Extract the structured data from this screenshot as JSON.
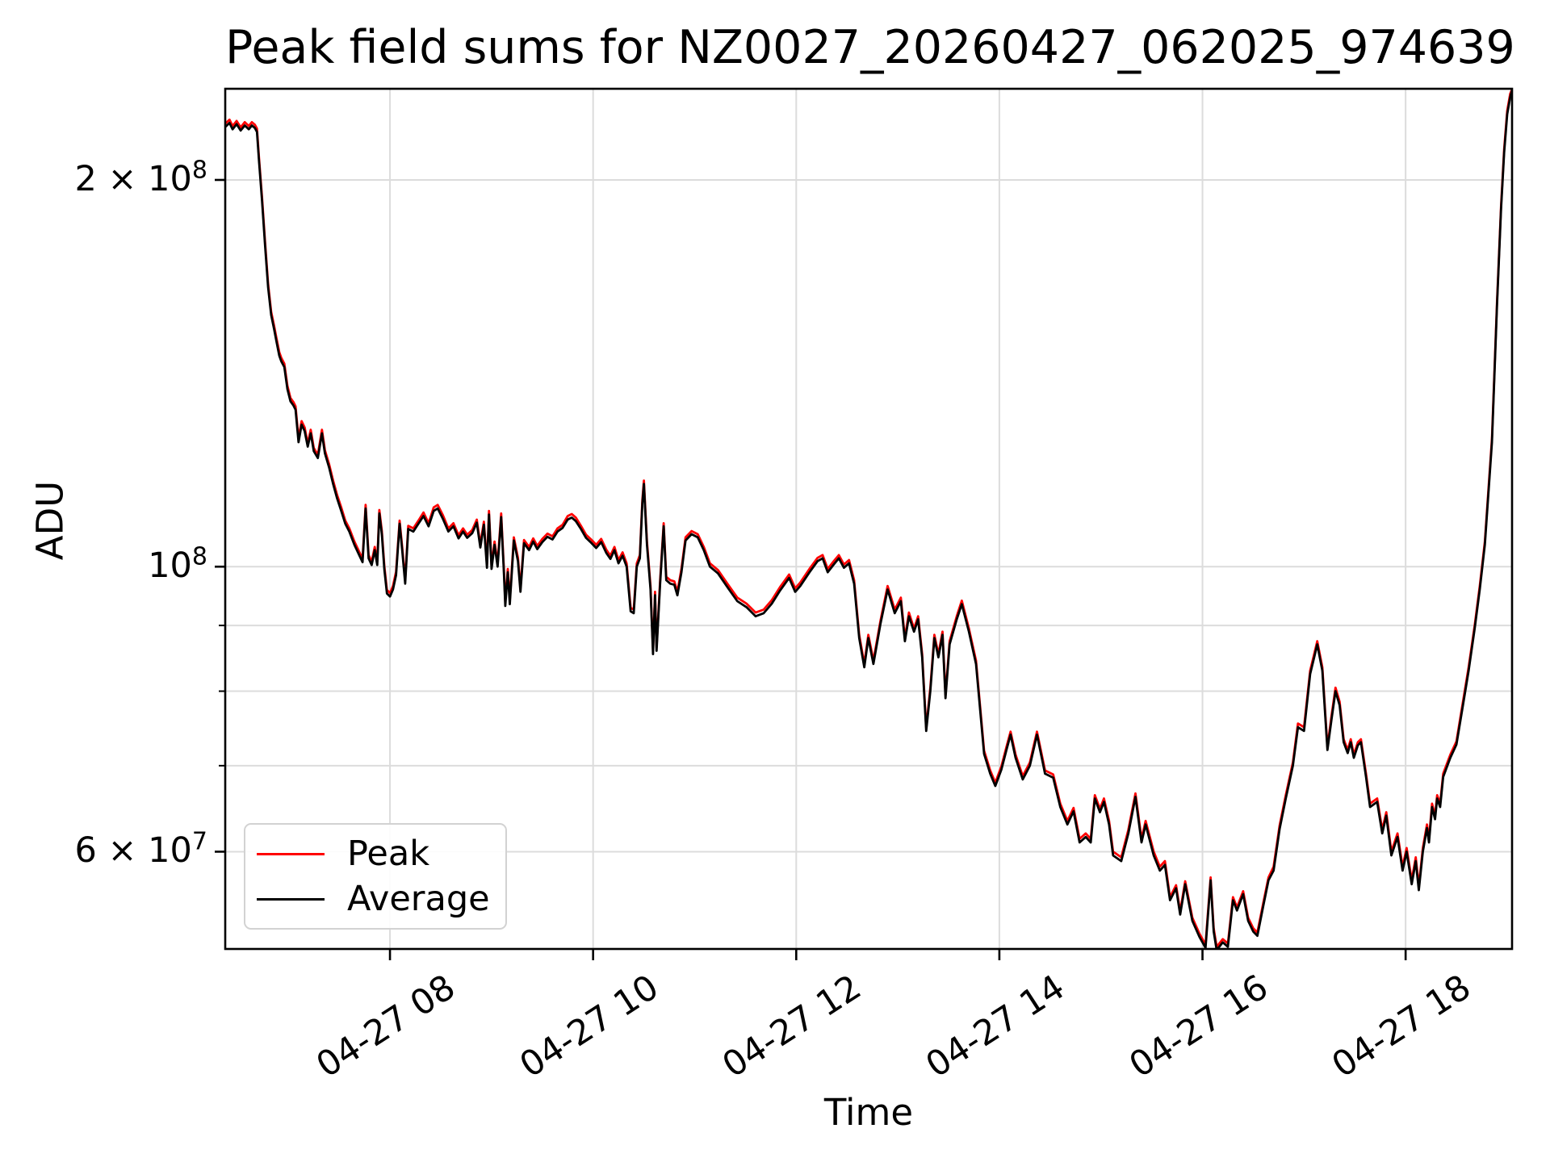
{
  "title": "Peak field sums for NZ0027_20260427_062025_974639",
  "axes": {
    "xlabel": "Time",
    "ylabel": "ADU",
    "x_ticks": [
      {
        "hour": 8,
        "label": "04-27 08"
      },
      {
        "hour": 10,
        "label": "04-27 10"
      },
      {
        "hour": 12,
        "label": "04-27 12"
      },
      {
        "hour": 14,
        "label": "04-27 14"
      },
      {
        "hour": 16,
        "label": "04-27 16"
      },
      {
        "hour": 18,
        "label": "04-27 18"
      }
    ],
    "y_major_ticks": [
      {
        "value": 200,
        "mantissa": "2 × 10",
        "exponent": "8"
      },
      {
        "value": 100,
        "mantissa": "10",
        "exponent": "8"
      },
      {
        "value": 60,
        "mantissa": "6 × 10",
        "exponent": "7"
      }
    ],
    "y_minor_tick_values": [
      90,
      80,
      70
    ],
    "y_grid_values": [
      200,
      100,
      90,
      80,
      70,
      60
    ],
    "grid_color": "#dcdcdc",
    "spine_color": "#000000"
  },
  "legend": {
    "entries": [
      {
        "label": "Peak",
        "color": "#ff0000"
      },
      {
        "label": "Average",
        "color": "#000000"
      }
    ]
  },
  "chart_data": {
    "type": "line",
    "title": "Peak field sums for NZ0027_20260427_062025_974639",
    "xlabel": "Time",
    "ylabel": "ADU",
    "yscale": "log",
    "x_unit": "decimal hours on 2026-04-27",
    "value_unit": "ADU",
    "value_scale": 1000000,
    "xlim_hours": [
      6.378,
      19.048
    ],
    "ylim": [
      50.4,
      235.5
    ],
    "legend_position": "lower left",
    "grid": true,
    "series": [
      {
        "name": "Peak",
        "color": "#ff0000",
        "column": 2
      },
      {
        "name": "Average",
        "color": "#000000",
        "column": 1
      }
    ],
    "columns": [
      "time_hours",
      "average_1e6_ADU",
      "peak_1e6_ADU"
    ],
    "points": [
      [
        6.38,
        220,
        221.3
      ],
      [
        6.42,
        221.5,
        222.8
      ],
      [
        6.45,
        219,
        220.3
      ],
      [
        6.49,
        221,
        222.3
      ],
      [
        6.53,
        218.5,
        219.8
      ],
      [
        6.57,
        220.5,
        221.8
      ],
      [
        6.61,
        219,
        220.3
      ],
      [
        6.64,
        220.5,
        221.8
      ],
      [
        6.67,
        219.5,
        220.8
      ],
      [
        6.69,
        218,
        219.3
      ],
      [
        6.71,
        207,
        208.2
      ],
      [
        6.74,
        193,
        194.2
      ],
      [
        6.77,
        178,
        179.1
      ],
      [
        6.8,
        165,
        166
      ],
      [
        6.83,
        157,
        157.9
      ],
      [
        6.86,
        153,
        153.9
      ],
      [
        6.88,
        150,
        150.9
      ],
      [
        6.91,
        146,
        146.9
      ],
      [
        6.93,
        144.5,
        145.4
      ],
      [
        6.96,
        143,
        143.9
      ],
      [
        6.99,
        137.5,
        138.3
      ],
      [
        7.02,
        134.5,
        135.3
      ],
      [
        7.05,
        133.5,
        134.3
      ],
      [
        7.07,
        132.5,
        133.3
      ],
      [
        7.1,
        125,
        125.8
      ],
      [
        7.13,
        129,
        129.8
      ],
      [
        7.16,
        127.5,
        128.3
      ],
      [
        7.19,
        124,
        124.7
      ],
      [
        7.22,
        127,
        127.8
      ],
      [
        7.25,
        123,
        123.7
      ],
      [
        7.29,
        121.5,
        122.2
      ],
      [
        7.33,
        127,
        127.8
      ],
      [
        7.36,
        122.5,
        123.2
      ],
      [
        7.4,
        119.5,
        120.2
      ],
      [
        7.44,
        116,
        116.7
      ],
      [
        7.48,
        113,
        113.7
      ],
      [
        7.52,
        110.5,
        111.2
      ],
      [
        7.56,
        108,
        108.6
      ],
      [
        7.6,
        106.5,
        107.1
      ],
      [
        7.65,
        104,
        104.6
      ],
      [
        7.7,
        102,
        102.6
      ],
      [
        7.73,
        100.8,
        101.4
      ],
      [
        7.76,
        111,
        111.7
      ],
      [
        7.79,
        101.5,
        102.1
      ],
      [
        7.82,
        100.3,
        100.9
      ],
      [
        7.85,
        103,
        103.6
      ],
      [
        7.875,
        100.3,
        100.9
      ],
      [
        7.895,
        110,
        110.7
      ],
      [
        7.92,
        106,
        106.6
      ],
      [
        7.945,
        99.5,
        100.1
      ],
      [
        7.97,
        95.3,
        95.9
      ],
      [
        8,
        94.8,
        95.4
      ],
      [
        8.03,
        96,
        96.6
      ],
      [
        8.06,
        98.5,
        99.1
      ],
      [
        8.095,
        108,
        108.6
      ],
      [
        8.12,
        103,
        103.6
      ],
      [
        8.15,
        97,
        97.6
      ],
      [
        8.18,
        107,
        107.6
      ],
      [
        8.23,
        106.5,
        107.1
      ],
      [
        8.28,
        108,
        108.6
      ],
      [
        8.33,
        109.5,
        110.2
      ],
      [
        8.38,
        107.5,
        108.1
      ],
      [
        8.43,
        110.5,
        111.2
      ],
      [
        8.47,
        111,
        111.7
      ],
      [
        8.52,
        109,
        109.7
      ],
      [
        8.575,
        106.5,
        107.1
      ],
      [
        8.625,
        107.5,
        108.1
      ],
      [
        8.675,
        105.2,
        105.8
      ],
      [
        8.72,
        106.5,
        107.1
      ],
      [
        8.76,
        105.3,
        105.9
      ],
      [
        8.81,
        106.2,
        106.8
      ],
      [
        8.855,
        108.2,
        108.8
      ],
      [
        8.89,
        103.5,
        104.1
      ],
      [
        8.925,
        107.8,
        108.4
      ],
      [
        8.955,
        99.8,
        100.4
      ],
      [
        8.975,
        109.8,
        110.5
      ],
      [
        9,
        99.6,
        100.2
      ],
      [
        9.03,
        104,
        104.6
      ],
      [
        9.06,
        100,
        100.6
      ],
      [
        9.095,
        109.3,
        110
      ],
      [
        9.12,
        99.5,
        100.1
      ],
      [
        9.135,
        93.2,
        93.8
      ],
      [
        9.16,
        99,
        99.6
      ],
      [
        9.18,
        93.5,
        94.1
      ],
      [
        9.22,
        104.8,
        105.4
      ],
      [
        9.26,
        101,
        101.6
      ],
      [
        9.285,
        95.6,
        96.2
      ],
      [
        9.32,
        104.3,
        104.9
      ],
      [
        9.37,
        103,
        103.6
      ],
      [
        9.41,
        104.6,
        105.2
      ],
      [
        9.45,
        103.2,
        103.8
      ],
      [
        9.5,
        104.5,
        105.1
      ],
      [
        9.55,
        105.5,
        106.1
      ],
      [
        9.6,
        105,
        105.6
      ],
      [
        9.65,
        106.5,
        107.1
      ],
      [
        9.7,
        107.2,
        107.8
      ],
      [
        9.75,
        108.8,
        109.5
      ],
      [
        9.79,
        109.2,
        109.9
      ],
      [
        9.83,
        108.5,
        109.2
      ],
      [
        9.88,
        107,
        107.6
      ],
      [
        9.93,
        105.3,
        105.9
      ],
      [
        9.98,
        104.4,
        105
      ],
      [
        10.03,
        103.4,
        104
      ],
      [
        10.08,
        104.5,
        105.1
      ],
      [
        10.13,
        102.5,
        103.1
      ],
      [
        10.17,
        101.4,
        102
      ],
      [
        10.21,
        103,
        103.6
      ],
      [
        10.25,
        100.6,
        101.2
      ],
      [
        10.29,
        102,
        102.6
      ],
      [
        10.33,
        100,
        100.6
      ],
      [
        10.37,
        92.3,
        92.9
      ],
      [
        10.4,
        92,
        92.6
      ],
      [
        10.43,
        100,
        100.6
      ],
      [
        10.46,
        101.5,
        102.1
      ],
      [
        10.485,
        112,
        112.7
      ],
      [
        10.5,
        116,
        116.7
      ],
      [
        10.53,
        104,
        104.6
      ],
      [
        10.565,
        96,
        96.6
      ],
      [
        10.59,
        85.5,
        86
      ],
      [
        10.61,
        95,
        95.6
      ],
      [
        10.625,
        86,
        86.5
      ],
      [
        10.66,
        97,
        97.6
      ],
      [
        10.695,
        107.5,
        108.1
      ],
      [
        10.72,
        97.6,
        98.2
      ],
      [
        10.76,
        97,
        97.6
      ],
      [
        10.8,
        96.8,
        97.4
      ],
      [
        10.83,
        95,
        95.6
      ],
      [
        10.87,
        99,
        99.6
      ],
      [
        10.91,
        104.8,
        105.4
      ],
      [
        10.97,
        106,
        106.6
      ],
      [
        11.03,
        105.4,
        106
      ],
      [
        11.09,
        103,
        103.6
      ],
      [
        11.15,
        100,
        100.6
      ],
      [
        11.23,
        98.8,
        99.4
      ],
      [
        11.33,
        96.2,
        96.8
      ],
      [
        11.42,
        94,
        94.6
      ],
      [
        11.51,
        93,
        93.6
      ],
      [
        11.6,
        91.5,
        92.1
      ],
      [
        11.68,
        92,
        92.6
      ],
      [
        11.76,
        93.6,
        94.2
      ],
      [
        11.84,
        95.8,
        96.4
      ],
      [
        11.93,
        98,
        98.6
      ],
      [
        11.99,
        95.6,
        96.2
      ],
      [
        12.04,
        96.6,
        97.2
      ],
      [
        12.13,
        99,
        99.6
      ],
      [
        12.21,
        101,
        101.6
      ],
      [
        12.26,
        101.5,
        102.1
      ],
      [
        12.31,
        99,
        99.6
      ],
      [
        12.37,
        100.4,
        101
      ],
      [
        12.42,
        101.5,
        102.1
      ],
      [
        12.47,
        99.8,
        100.4
      ],
      [
        12.52,
        100.6,
        101.2
      ],
      [
        12.57,
        97,
        97.6
      ],
      [
        12.62,
        88,
        88.5
      ],
      [
        12.67,
        83.5,
        84
      ],
      [
        12.71,
        88,
        88.5
      ],
      [
        12.76,
        84,
        84.5
      ],
      [
        12.83,
        90.3,
        90.8
      ],
      [
        12.9,
        96,
        96.6
      ],
      [
        12.97,
        92,
        92.6
      ],
      [
        13.03,
        94,
        94.6
      ],
      [
        13.07,
        87.5,
        88
      ],
      [
        13.11,
        91.5,
        92.1
      ],
      [
        13.16,
        89,
        89.5
      ],
      [
        13.2,
        91,
        91.5
      ],
      [
        13.24,
        85,
        85.5
      ],
      [
        13.28,
        74.5,
        74.9
      ],
      [
        13.32,
        80,
        80.5
      ],
      [
        13.36,
        88,
        88.5
      ],
      [
        13.4,
        85,
        85.5
      ],
      [
        13.44,
        88.5,
        89
      ],
      [
        13.47,
        79,
        79.5
      ],
      [
        13.51,
        87,
        87.5
      ],
      [
        13.58,
        91,
        91.5
      ],
      [
        13.63,
        93.5,
        94.1
      ],
      [
        13.7,
        89,
        89.5
      ],
      [
        13.77,
        84,
        84.5
      ],
      [
        13.85,
        71.5,
        71.9
      ],
      [
        13.91,
        69,
        69.4
      ],
      [
        13.96,
        67.5,
        67.9
      ],
      [
        14.02,
        69.5,
        69.9
      ],
      [
        14.07,
        72,
        72.4
      ],
      [
        14.11,
        74,
        74.4
      ],
      [
        14.16,
        71,
        71.4
      ],
      [
        14.23,
        68.3,
        68.7
      ],
      [
        14.3,
        70,
        70.4
      ],
      [
        14.37,
        74,
        74.4
      ],
      [
        14.45,
        69,
        69.4
      ],
      [
        14.53,
        68.5,
        68.9
      ],
      [
        14.6,
        65,
        65.4
      ],
      [
        14.67,
        63,
        63.4
      ],
      [
        14.73,
        64.5,
        64.9
      ],
      [
        14.79,
        61,
        61.4
      ],
      [
        14.85,
        61.6,
        62
      ],
      [
        14.9,
        61,
        61.4
      ],
      [
        14.94,
        66,
        66.4
      ],
      [
        14.99,
        64.4,
        64.8
      ],
      [
        15.03,
        65.6,
        66
      ],
      [
        15.08,
        63,
        63.4
      ],
      [
        15.12,
        59.6,
        60
      ],
      [
        15.2,
        59,
        59.4
      ],
      [
        15.27,
        62,
        62.4
      ],
      [
        15.34,
        66.2,
        66.6
      ],
      [
        15.4,
        61,
        61.4
      ],
      [
        15.44,
        63,
        63.4
      ],
      [
        15.52,
        59.6,
        60
      ],
      [
        15.58,
        58,
        58.4
      ],
      [
        15.63,
        58.6,
        59
      ],
      [
        15.68,
        55,
        55.3
      ],
      [
        15.74,
        56.2,
        56.5
      ],
      [
        15.78,
        53.6,
        53.9
      ],
      [
        15.83,
        56.6,
        56.9
      ],
      [
        15.9,
        53,
        53.3
      ],
      [
        15.97,
        51.5,
        51.8
      ],
      [
        16.03,
        50.5,
        50.8
      ],
      [
        16.08,
        57,
        57.3
      ],
      [
        16.11,
        52,
        52.3
      ],
      [
        16.14,
        50.3,
        50.6
      ],
      [
        16.2,
        51,
        51.3
      ],
      [
        16.25,
        50.6,
        50.9
      ],
      [
        16.3,
        55,
        55.3
      ],
      [
        16.34,
        54,
        54.3
      ],
      [
        16.4,
        55.6,
        55.9
      ],
      [
        16.45,
        53,
        53.3
      ],
      [
        16.5,
        52,
        52.3
      ],
      [
        16.54,
        51.6,
        51.9
      ],
      [
        16.6,
        54.5,
        54.8
      ],
      [
        16.65,
        57,
        57.3
      ],
      [
        16.7,
        58,
        58.4
      ],
      [
        16.76,
        62.5,
        62.9
      ],
      [
        16.82,
        66,
        66.4
      ],
      [
        16.89,
        70,
        70.4
      ],
      [
        16.94,
        75,
        75.5
      ],
      [
        17,
        74.5,
        75
      ],
      [
        17.06,
        82.5,
        83
      ],
      [
        17.1,
        85,
        85.5
      ],
      [
        17.13,
        87,
        87.5
      ],
      [
        17.18,
        83,
        83.5
      ],
      [
        17.23,
        72,
        72.4
      ],
      [
        17.27,
        76,
        76.5
      ],
      [
        17.31,
        80,
        80.5
      ],
      [
        17.35,
        78,
        78.5
      ],
      [
        17.39,
        73,
        73.4
      ],
      [
        17.43,
        71.6,
        72
      ],
      [
        17.46,
        73,
        73.4
      ],
      [
        17.49,
        71,
        71.4
      ],
      [
        17.53,
        72.6,
        73
      ],
      [
        17.56,
        73,
        73.4
      ],
      [
        17.61,
        68.6,
        69
      ],
      [
        17.65,
        65,
        65.4
      ],
      [
        17.72,
        65.6,
        66
      ],
      [
        17.77,
        62,
        62.4
      ],
      [
        17.81,
        64,
        64.4
      ],
      [
        17.86,
        59.6,
        60
      ],
      [
        17.92,
        61.6,
        62
      ],
      [
        17.97,
        58,
        58.4
      ],
      [
        18.01,
        60,
        60.4
      ],
      [
        18.06,
        56.6,
        57
      ],
      [
        18.1,
        59,
        59.4
      ],
      [
        18.13,
        56,
        56.4
      ],
      [
        18.17,
        60,
        60.4
      ],
      [
        18.21,
        62.6,
        63
      ],
      [
        18.23,
        61,
        61.4
      ],
      [
        18.26,
        65,
        65.4
      ],
      [
        18.29,
        63.6,
        64
      ],
      [
        18.31,
        66,
        66.4
      ],
      [
        18.34,
        65,
        65.4
      ],
      [
        18.37,
        68.6,
        69
      ],
      [
        18.44,
        71,
        71.4
      ],
      [
        18.5,
        72.7,
        73.1
      ],
      [
        18.57,
        78.5,
        79
      ],
      [
        18.62,
        83,
        83.5
      ],
      [
        18.68,
        89.5,
        90
      ],
      [
        18.73,
        96,
        96.6
      ],
      [
        18.78,
        104,
        104.6
      ],
      [
        18.85,
        125,
        125.8
      ],
      [
        18.9,
        160,
        161
      ],
      [
        18.94,
        190,
        191.1
      ],
      [
        18.97,
        210,
        211.3
      ],
      [
        19,
        225,
        226.4
      ],
      [
        19.03,
        232,
        233.4
      ],
      [
        19.05,
        235.3,
        235.5
      ]
    ]
  }
}
